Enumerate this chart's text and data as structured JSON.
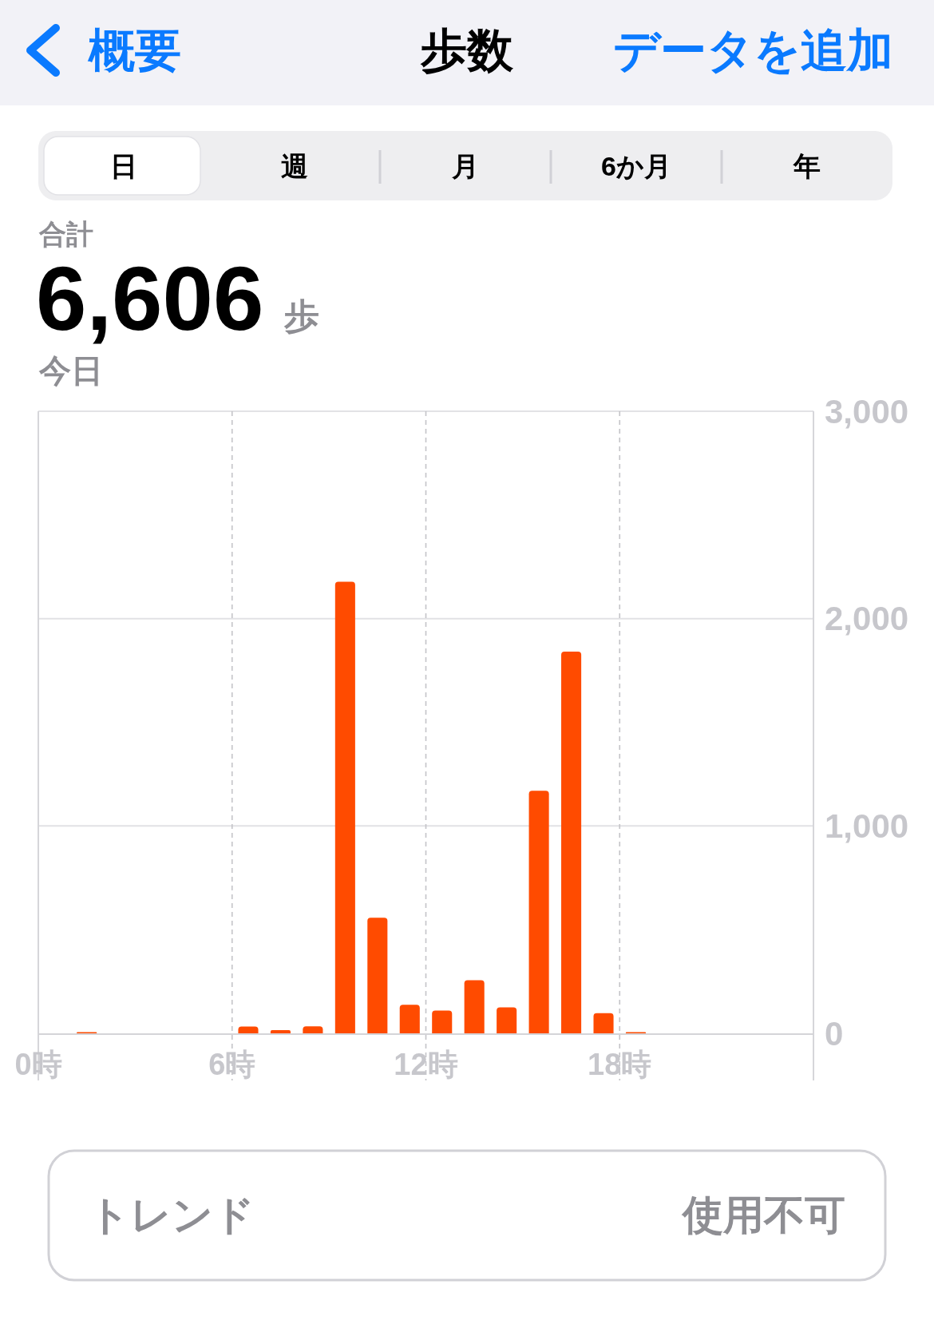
{
  "chart_data": {
    "type": "bar",
    "title": "歩数",
    "annotations": [
      "概要",
      "データを追加",
      "日",
      "週",
      "月",
      "6か月",
      "年",
      "合計",
      "6,606",
      "歩",
      "今日",
      "トレンド",
      "使用不可"
    ],
    "x": [
      1.5,
      6.5,
      7.5,
      8.5,
      9.5,
      10.5,
      11.5,
      12.5,
      13.5,
      14.5,
      15.5,
      16.5,
      17.5,
      18.5
    ],
    "values": [
      6,
      33,
      15,
      34,
      2178,
      557,
      138,
      110,
      256,
      125,
      1170,
      1841,
      97,
      6
    ],
    "color": "#ff4b00",
    "xlim": [
      0,
      24
    ],
    "xticks": [
      {
        "value": 0,
        "label": "0時"
      },
      {
        "value": 6,
        "label": "6時"
      },
      {
        "value": 12,
        "label": "12時"
      },
      {
        "value": 18,
        "label": "18時"
      }
    ],
    "ylim": [
      0,
      3000
    ],
    "yticks": [
      0,
      {
        "value": 1000,
        "label": "1,000"
      },
      {
        "value": 2000,
        "label": "2,000"
      },
      {
        "value": 3000,
        "label": "3,000"
      }
    ],
    "grid": true
  }
}
